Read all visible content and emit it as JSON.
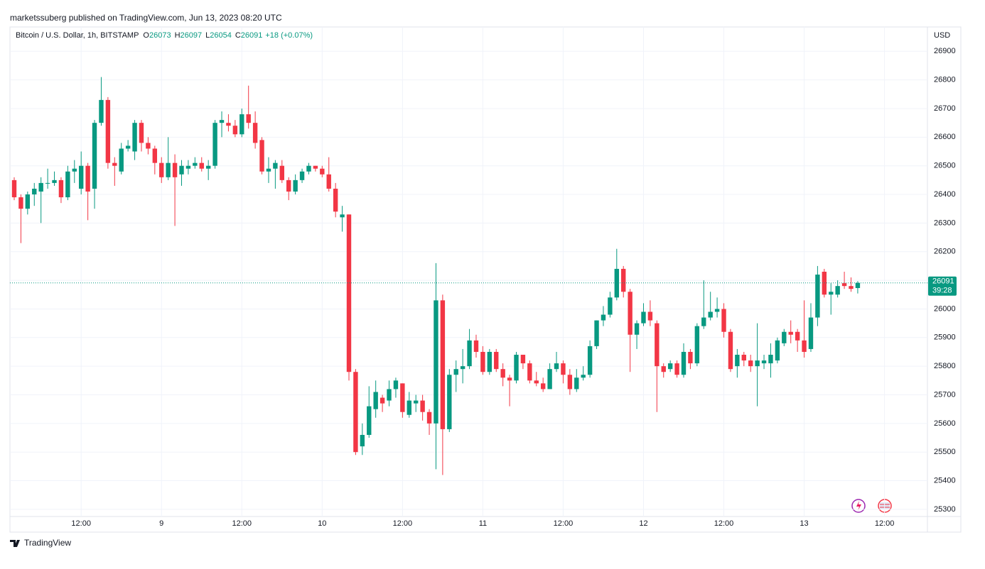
{
  "header": {
    "published": "marketssuberg published on TradingView.com, Jun 13, 2023 08:20 UTC",
    "symbol": "Bitcoin / U.S. Dollar, 1h, BITSTAMP",
    "ohlc": [
      {
        "label": "O",
        "value": 26073
      },
      {
        "label": "H",
        "value": 26097
      },
      {
        "label": "L",
        "value": 26054
      },
      {
        "label": "C",
        "value": 26091
      }
    ],
    "change": "+18 (+0.07%)",
    "currency": "USD",
    "countdown": "39:28"
  },
  "footer": {
    "brand": "TradingView"
  },
  "chart_data": {
    "type": "candlestick",
    "up_color": "#089981",
    "down_color": "#f23645",
    "grid": true,
    "categories": [
      null,
      null,
      null,
      null,
      null,
      null,
      null,
      null,
      null,
      null,
      "12:00",
      null,
      null,
      null,
      null,
      null,
      null,
      null,
      null,
      null,
      null,
      null,
      "9",
      null,
      null,
      null,
      null,
      null,
      null,
      null,
      null,
      null,
      null,
      null,
      "12:00",
      null,
      null,
      null,
      null,
      null,
      null,
      null,
      null,
      null,
      null,
      null,
      "10",
      null,
      null,
      null,
      null,
      null,
      null,
      null,
      null,
      null,
      null,
      null,
      "12:00",
      null,
      null,
      null,
      null,
      null,
      null,
      null,
      null,
      null,
      null,
      null,
      "11",
      null,
      null,
      null,
      null,
      null,
      null,
      null,
      null,
      null,
      null,
      null,
      "12:00",
      null,
      null,
      null,
      null,
      null,
      null,
      null,
      null,
      null,
      null,
      null,
      "12",
      null,
      null,
      null,
      null,
      null,
      null,
      null,
      null,
      null,
      null,
      null,
      "12:00",
      null,
      null,
      null,
      null,
      null,
      null,
      null,
      null,
      null,
      null,
      null,
      "13",
      null,
      null,
      null,
      null,
      null,
      null,
      null,
      null,
      null,
      null,
      null,
      "12:00"
    ],
    "open": [
      26450,
      26390,
      26350,
      26400,
      26410,
      26440,
      26440,
      26450,
      26390,
      26480,
      26420,
      26500,
      26420,
      26650,
      26730,
      26510,
      26480,
      26560,
      26550,
      26650,
      26580,
      26560,
      26510,
      26460,
      26510,
      26470,
      26490,
      26500,
      26510,
      26490,
      26500,
      26650,
      26650,
      26640,
      26610,
      26680,
      26650,
      26590,
      26480,
      26490,
      26500,
      26450,
      26410,
      26450,
      26480,
      26500,
      26490,
      26470,
      26420,
      26320,
      26330,
      25780,
      25520,
      25560,
      25650,
      25690,
      25680,
      25720,
      25740,
      25630,
      25670,
      25680,
      25640,
      25600,
      26030,
      25580,
      25770,
      25790,
      25800,
      25890,
      25850,
      25780,
      25850,
      25790,
      25760,
      25750,
      25840,
      25810,
      25750,
      25740,
      25720,
      25790,
      25810,
      25770,
      25720,
      25760,
      25770,
      25870,
      25960,
      25980,
      26040,
      26140,
      26060,
      25910,
      25950,
      25990,
      25950,
      25800,
      25790,
      25810,
      25770,
      25850,
      25810,
      25940,
      25970,
      25990,
      26000,
      25920,
      25800,
      25840,
      25820,
      25800,
      25810,
      25810,
      25820,
      25880,
      25920,
      25920,
      25890,
      25860,
      25970,
      26130,
      26050,
      26050,
      26090,
      26080,
      26073,
      null,
      null,
      null,
      null
    ],
    "high": [
      26460,
      26400,
      26410,
      26440,
      26460,
      26490,
      26480,
      26460,
      26500,
      26520,
      26550,
      26510,
      26660,
      26810,
      26740,
      26530,
      26580,
      26590,
      26660,
      26660,
      26600,
      26570,
      26530,
      26600,
      26540,
      26520,
      26520,
      26530,
      26530,
      26520,
      26660,
      26690,
      26680,
      26660,
      26700,
      26780,
      26690,
      26600,
      26530,
      26520,
      26520,
      26460,
      26470,
      26490,
      26510,
      26500,
      26500,
      26530,
      26440,
      26360,
      26330,
      25790,
      25600,
      25730,
      25750,
      25700,
      25750,
      25760,
      25740,
      25710,
      25700,
      25700,
      25650,
      26160,
      26050,
      25790,
      25820,
      25860,
      25930,
      25910,
      25870,
      25860,
      25860,
      25810,
      25770,
      25850,
      25840,
      25820,
      25780,
      25760,
      25810,
      25850,
      25820,
      25790,
      25790,
      25800,
      25890,
      25960,
      26010,
      26060,
      26210,
      26150,
      26070,
      25960,
      26020,
      26030,
      25960,
      25810,
      25820,
      25820,
      25880,
      25860,
      25950,
      26100,
      26060,
      26040,
      26020,
      25930,
      25860,
      25850,
      25840,
      25950,
      25840,
      25880,
      25900,
      25930,
      25960,
      25930,
      26030,
      26020,
      26150,
      26140,
      26090,
      26100,
      26130,
      26110,
      26097,
      null,
      null,
      null,
      null
    ],
    "low": [
      26380,
      26230,
      26330,
      26360,
      26300,
      26420,
      26430,
      26370,
      26380,
      26440,
      26400,
      26310,
      26350,
      26640,
      26490,
      26430,
      26470,
      26550,
      26520,
      26550,
      26540,
      26470,
      26440,
      26450,
      26290,
      26430,
      26470,
      26490,
      26480,
      26450,
      26490,
      26600,
      26620,
      26600,
      26600,
      26630,
      26560,
      26470,
      26440,
      26420,
      26440,
      26380,
      26400,
      26440,
      26470,
      26480,
      26460,
      26410,
      26320,
      26270,
      25750,
      25490,
      25490,
      25550,
      25620,
      25640,
      25660,
      25690,
      25620,
      25620,
      25640,
      25610,
      25560,
      25440,
      25420,
      25570,
      25710,
      25740,
      25790,
      25830,
      25770,
      25770,
      25780,
      25730,
      25660,
      25740,
      25790,
      25740,
      25730,
      25710,
      25720,
      25780,
      25740,
      25700,
      25710,
      25750,
      25760,
      25860,
      25940,
      25970,
      26030,
      26040,
      25780,
      25860,
      25940,
      25940,
      25640,
      25760,
      25780,
      25760,
      25760,
      25790,
      25800,
      25930,
      25960,
      25970,
      25900,
      25780,
      25760,
      25800,
      25780,
      25660,
      25790,
      25760,
      25810,
      25870,
      25880,
      25850,
      25830,
      25850,
      25940,
      26040,
      25980,
      26040,
      26070,
      26060,
      26054,
      null,
      null,
      null,
      null
    ],
    "close": [
      26390,
      26350,
      26400,
      26420,
      26440,
      26440,
      26450,
      26390,
      26480,
      26490,
      26500,
      26410,
      26650,
      26730,
      26510,
      26500,
      26560,
      26570,
      26650,
      26580,
      26560,
      26510,
      26460,
      26510,
      26460,
      26500,
      26500,
      26510,
      26490,
      26500,
      26650,
      26660,
      26640,
      26610,
      26680,
      26650,
      26580,
      26480,
      26490,
      26510,
      26450,
      26410,
      26450,
      26480,
      26500,
      26490,
      26470,
      26420,
      26340,
      26330,
      25780,
      25500,
      25560,
      25660,
      25710,
      25670,
      25720,
      25750,
      25640,
      25680,
      25680,
      25640,
      25600,
      26030,
      25580,
      25770,
      25790,
      25800,
      25890,
      25850,
      25780,
      25850,
      25790,
      25760,
      25750,
      25840,
      25810,
      25750,
      25740,
      25720,
      25790,
      25810,
      25770,
      25720,
      25760,
      25770,
      25870,
      25960,
      25980,
      26040,
      26140,
      26060,
      25910,
      25950,
      25990,
      25960,
      25800,
      25780,
      25810,
      25770,
      25850,
      25810,
      25940,
      25970,
      25990,
      26000,
      25920,
      25790,
      25840,
      25820,
      25800,
      25820,
      25820,
      25840,
      25890,
      25920,
      25910,
      25890,
      25850,
      25970,
      26120,
      26050,
      26060,
      26080,
      26080,
      26070,
      26091,
      null,
      null,
      null,
      null
    ],
    "last_price": 26091,
    "ylim": [
      25275,
      26980
    ],
    "yticks": [
      25300,
      25400,
      25500,
      25600,
      25700,
      25800,
      25900,
      26000,
      26100,
      26200,
      26300,
      26400,
      26500,
      26600,
      26700,
      26800,
      26900
    ]
  }
}
